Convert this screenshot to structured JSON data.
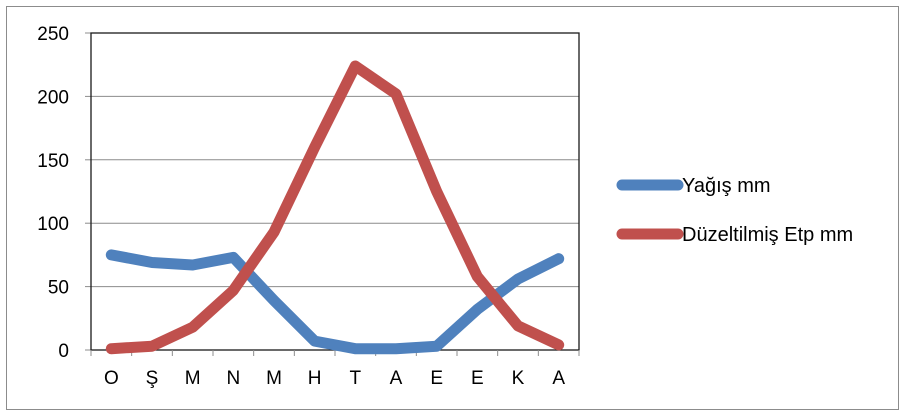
{
  "chart_data": {
    "type": "line",
    "title": "",
    "xlabel": "",
    "ylabel": "",
    "categories": [
      "O",
      "Ş",
      "M",
      "N",
      "M",
      "H",
      "T",
      "A",
      "E",
      "E",
      "K",
      "A"
    ],
    "ylim": [
      0,
      250
    ],
    "yticks": [
      0,
      50,
      100,
      150,
      200,
      250
    ],
    "grid": true,
    "legend_position": "right",
    "series": [
      {
        "name": "Yağış mm",
        "color": "#4f81bd",
        "values": [
          75,
          69,
          67,
          73,
          39,
          7,
          1,
          1,
          3,
          32,
          56,
          72
        ]
      },
      {
        "name": "Düzeltilmiş Etp mm",
        "color": "#c0504d",
        "values": [
          1,
          3,
          18,
          47,
          93,
          160,
          224,
          202,
          125,
          58,
          19,
          4
        ]
      }
    ]
  }
}
